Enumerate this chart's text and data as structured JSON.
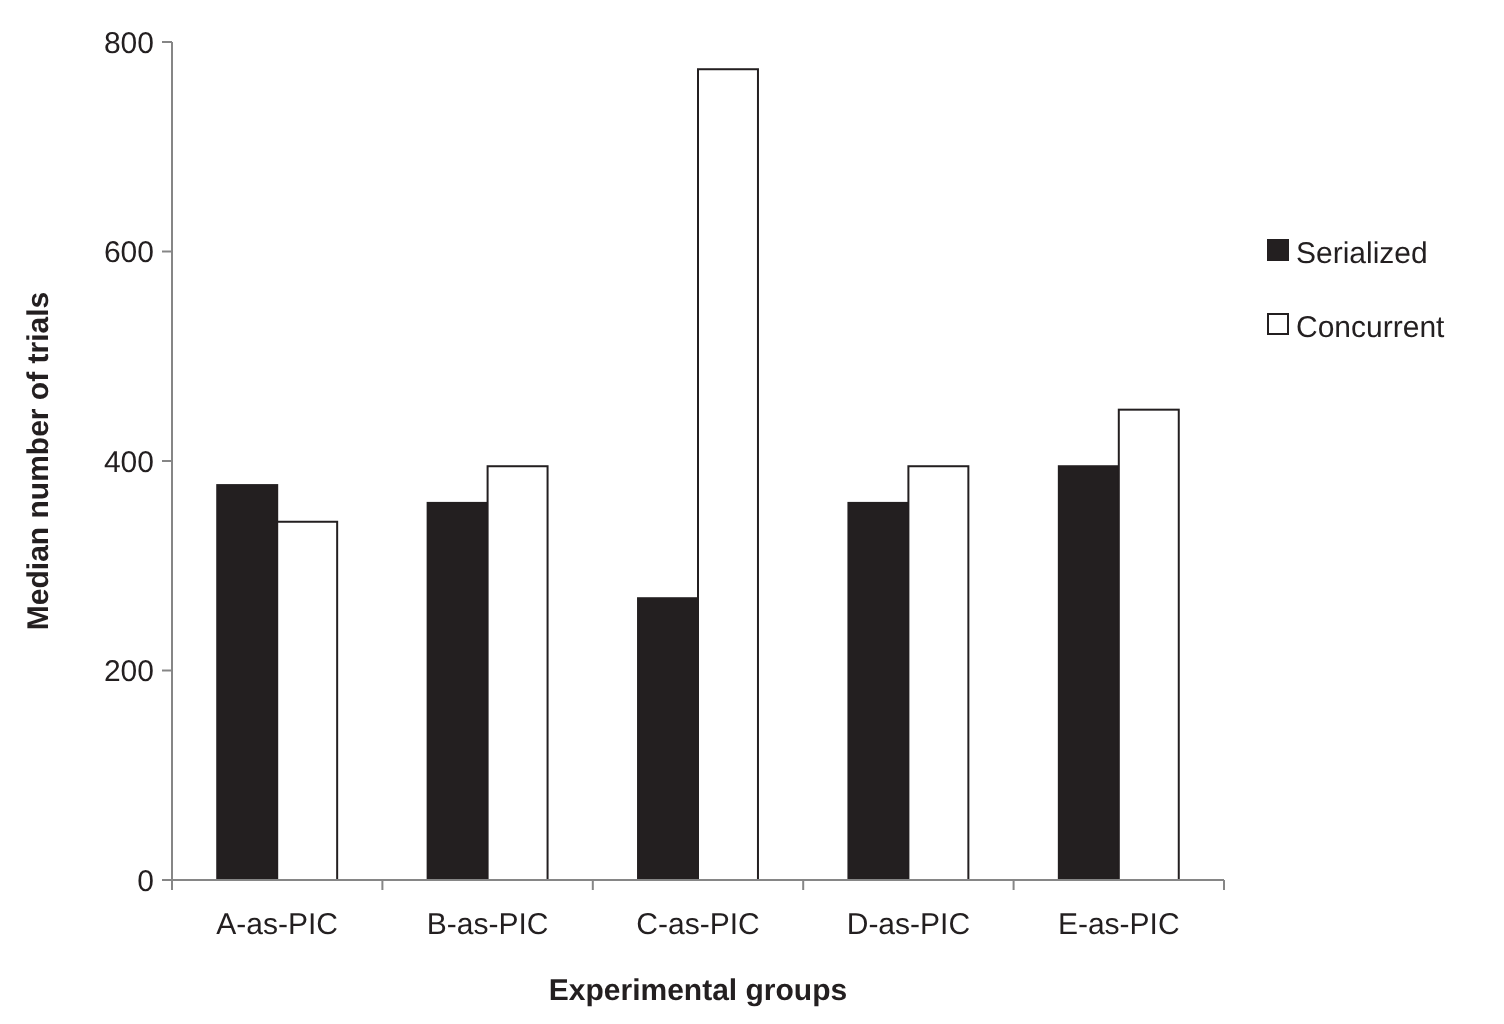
{
  "chart_data": {
    "type": "bar",
    "xlabel": "Experimental groups",
    "ylabel": "Median number of trials",
    "categories": [
      "A-as-PIC",
      "B-as-PIC",
      "C-as-PIC",
      "D-as-PIC",
      "E-as-PIC"
    ],
    "series": [
      {
        "name": "Serialized",
        "color": "#231f20",
        "values": [
          377,
          360,
          269,
          360,
          395
        ]
      },
      {
        "name": "Concurrent",
        "color": "#ffffff",
        "values": [
          342,
          395,
          774,
          395,
          449
        ]
      }
    ],
    "ylim": [
      0,
      800
    ],
    "yticks": [
      0,
      200,
      400,
      600,
      800
    ],
    "grid": false,
    "legend": "right"
  }
}
